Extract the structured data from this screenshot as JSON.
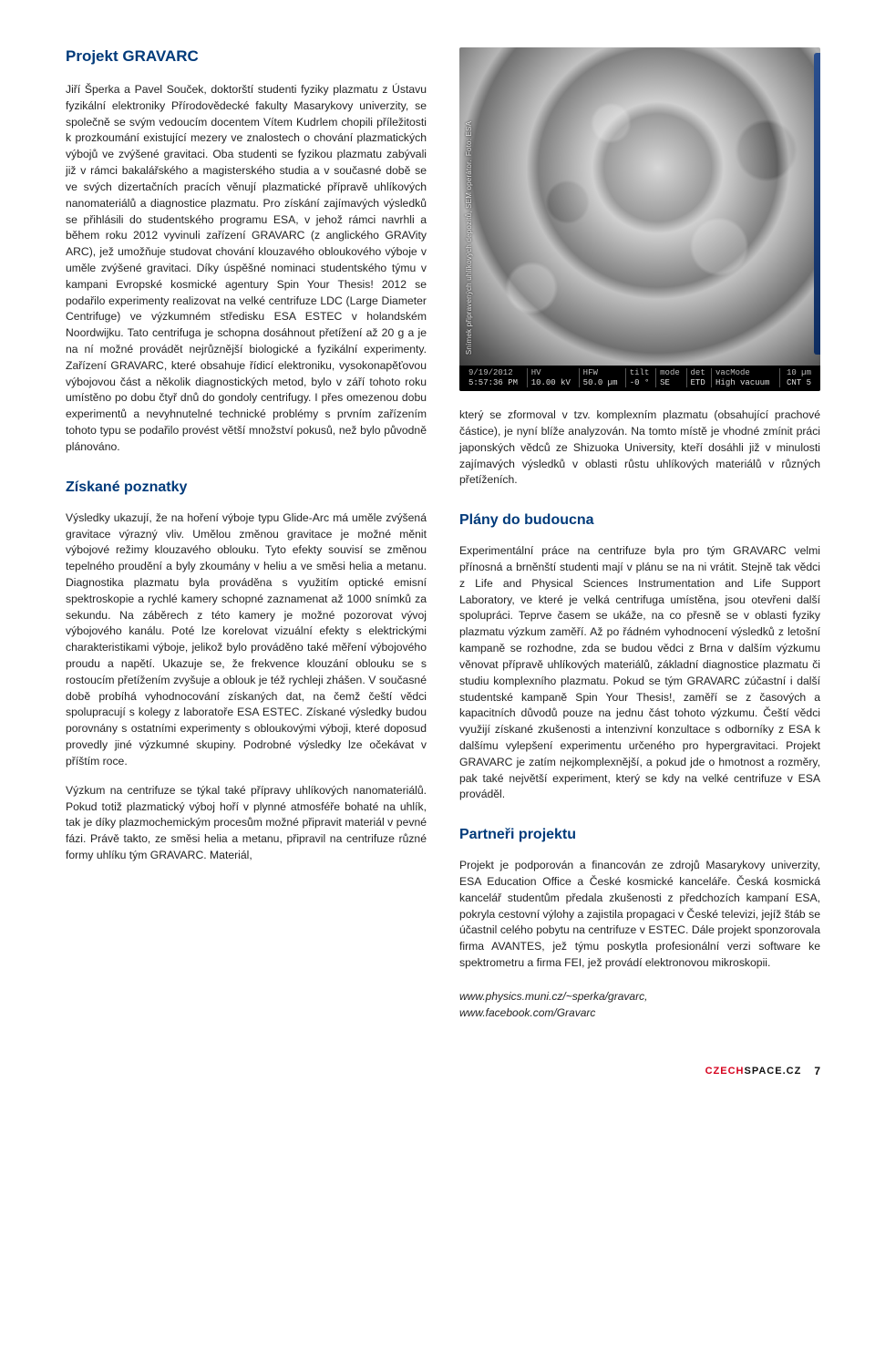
{
  "title": "Projekt GRAVARC",
  "left": {
    "intro": "Jiří Šperka a Pavel Souček, doktorští studenti fyziky plazmatu z Ústavu fyzikální elektroniky Přírodovědecké fakulty Masarykovy univerzity, se společně se svým vedoucím docentem Vítem Kudrlem chopili příležitosti k prozkoumání existující mezery ve znalostech o chování plazmatických výbojů ve zvýšené gravitaci. Oba studenti se fyzikou plazmatu zabývali již v rámci bakalářského a magisterského studia a v současné době se ve svých dizertačních pracích věnují plazmatické přípravě uhlíkových nanomateriálů a diagnostice plazmatu. Pro získání zajímavých výsledků se přihlásili do studentského programu ESA, v jehož rámci navrhli a během roku 2012 vyvinuli zařízení GRAVARC (z anglického GRAVity ARC), jež umožňuje studovat chování klouzavého obloukového výboje v uměle zvýšené gravitaci. Díky úspěšné nominaci studentského týmu v kampani Evropské kosmické agentury Spin Your Thesis! 2012 se podařilo experimenty realizovat na velké centrifuze LDC (Large Diameter Centrifuge) ve výzkumném středisku ESA ESTEC v holandském Noordwijku. Tato centrifuga je schopna dosáhnout přetížení až 20 g a je na ní možné provádět nejrůznější biologické a fyzikální experimenty. Zařízení GRAVARC, které obsahuje řídicí elektroniku, vysokonapěťovou výbojovou část a několik diagnostických metod, bylo v září tohoto roku umístěno po dobu čtyř dnů do gondoly centrifugy. I přes omezenou dobu experimentů a nevyhnutelné technické problémy s prvním zařízením tohoto typu se podařilo provést větší množství pokusů, než bylo původně plánováno.",
    "h2a": "Získané poznatky",
    "p2": "Výsledky ukazují, že na hoření výboje typu Glide-Arc má uměle zvýšená gravitace výrazný vliv. Umělou změnou gravitace je možné měnit výbojové režimy klouzavého oblouku. Tyto efekty souvisí se změnou tepelného proudění a byly zkoumány v heliu a ve směsi helia a metanu. Diagnostika plazmatu byla prováděna s využitím optické emisní spektroskopie a rychlé kamery schopné zaznamenat až 1000 snímků za sekundu. Na záběrech z této kamery je možné pozorovat vývoj výbojového kanálu. Poté lze korelovat vizuální efekty s elektrickými charakteristikami výboje, jelikož bylo prováděno také měření výbojového proudu a napětí. Ukazuje se, že frekvence klouzání oblouku se s rostoucím přetížením zvyšuje a oblouk je též rychleji zhášen. V současné době probíhá vyhodnocování získaných dat, na čemž čeští vědci spolupracují s kolegy z laboratoře ESA ESTEC. Získané výsledky budou porovnány s ostatními experimenty s obloukovými výboji, které doposud provedly jiné výzkumné skupiny. Podrobné výsledky lze očekávat v příštím roce.",
    "p3": "Výzkum na centrifuze se týkal také přípravy uhlíkových nanomateriálů. Pokud totiž plazmatický výboj hoří v plynné atmosféře bohaté na uhlík, tak je díky plazmochemickým procesům možné připravit materiál v pevné fázi. Právě takto, ze směsi helia a metanu, připravil na centrifuze různé formy uhlíku tým GRAVARC. Materiál,"
  },
  "right": {
    "image_credit_top": "Snímek připravených uhlíkových depozitů, SEM operátor.",
    "image_credit_bottom": "Foto: ESA",
    "sem": {
      "headers": [
        "",
        "HV",
        "HFW",
        "tilt",
        "mode",
        "det",
        "vacMode",
        "10 µm"
      ],
      "values": [
        "5:57:36 PM",
        "10.00 kV",
        "50.0 µm",
        "-0 °",
        "SE",
        "ETD",
        "High vacuum",
        "CNT 5"
      ],
      "date": "9/19/2012"
    },
    "p1": "který se zformoval v tzv. komplexním plazmatu (obsahující prachové částice), je nyní blíže analyzován. Na tomto místě je vhodné zmínit práci japonských vědců ze Shizuoka University, kteří dosáhli již v minulosti zajímavých výsledků v oblasti růstu uhlíkových materiálů v různých přetíženích.",
    "h2b": "Plány do budoucna",
    "p2": "Experimentální práce na centrifuze byla pro tým GRAVARC velmi přínosná a brněnští studenti mají v plánu se na ni vrátit. Stejně tak vědci z Life and Physical Sciences Instrumentation and Life Support Laboratory, ve které je velká centrifuga umístěna, jsou otevřeni další spolupráci. Teprve časem se ukáže, na co přesně se v oblasti fyziky plazmatu výzkum zaměří. Až po řádném vyhodnocení výsledků z letošní kampaně se rozhodne, zda se budou vědci z Brna v dalším výzkumu věnovat přípravě uhlíkových materiálů, základní diagnostice plazmatu či studiu komplexního plazmatu. Pokud se tým GRAVARC zúčastní i další studentské kampaně Spin Your Thesis!, zaměří se z časových a kapacitních důvodů pouze na jednu část tohoto výzkumu. Čeští vědci využijí získané zkušenosti a intenzivní konzultace s odborníky z ESA k dalšímu vylepšení experimentu určeného pro hypergravitaci. Projekt GRAVARC je zatím nejkomplexnější, a pokud jde o hmotnost a rozměry, pak také největší experiment, který se kdy na velké centrifuze v ESA prováděl.",
    "h2c": "Partneři projektu",
    "p3": "Projekt je podporován a financován ze zdrojů Masarykovy univerzity, ESA Education Office a České kosmické kanceláře. Česká kosmická kancelář studentům předala zkušenosti z předchozích kampaní ESA, pokryla cestovní výlohy a zajistila propagaci v České televizi, jejíž štáb se účastnil celého pobytu na centrifuze v ESTEC. Dále projekt sponzorovala firma AVANTES, jež týmu poskytla profesionální verzi software ke spektrometru a firma FEI, jež provádí elektronovou mikroskopii.",
    "link1": "www.physics.muni.cz/~sperka/gravarc,",
    "link2": "www.facebook.com/Gravarc"
  },
  "footer": {
    "brand_a": "CZECH",
    "brand_b": "SPACE.CZ",
    "page": "7"
  }
}
